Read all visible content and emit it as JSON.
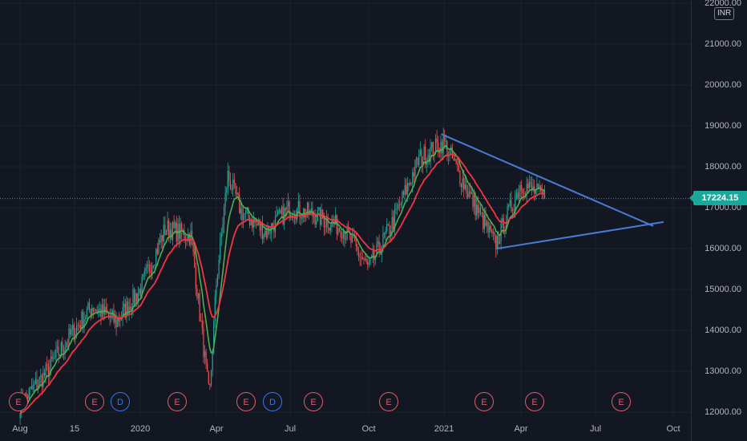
{
  "price_axis": {
    "currency": "INR",
    "top_label": "22000.00",
    "ticks": [
      "21000.00",
      "20000.00",
      "19000.00",
      "18000.00",
      "17000.00",
      "16000.00",
      "15000.00",
      "14000.00",
      "13000.00",
      "12000.00"
    ]
  },
  "last_price": {
    "label": "17224.15",
    "value": 17224.15,
    "color": "#1aa89a"
  },
  "time_axis": {
    "labels": [
      "Aug",
      "15",
      "2020",
      "Apr",
      "Jul",
      "Oct",
      "2021",
      "Apr",
      "Jul",
      "Oct"
    ]
  },
  "events": {
    "labels": [
      "E",
      "E",
      "D",
      "E",
      "E",
      "D",
      "E",
      "E",
      "E",
      "E",
      "E"
    ]
  },
  "chart_data": {
    "type": "candlestick",
    "ylim": [
      12000,
      22000
    ],
    "grid": true,
    "x_start": "2019-08",
    "x_end": "2021-10",
    "price_series_approx": [
      [
        "2019-08",
        12200
      ],
      [
        "2019-09",
        12900
      ],
      [
        "2019-10",
        13800
      ],
      [
        "2019-11",
        14600
      ],
      [
        "2019-12",
        14200
      ],
      [
        "2020-01",
        15000
      ],
      [
        "2020-02",
        16500
      ],
      [
        "2020-03",
        16300
      ],
      [
        "2020-03-23",
        12300
      ],
      [
        "2020-04",
        15200
      ],
      [
        "2020-04-15",
        17800
      ],
      [
        "2020-05",
        16900
      ],
      [
        "2020-06",
        16400
      ],
      [
        "2020-07",
        17000
      ],
      [
        "2020-08",
        16800
      ],
      [
        "2020-09",
        16500
      ],
      [
        "2020-10",
        15500
      ],
      [
        "2020-11",
        16700
      ],
      [
        "2020-12",
        18200
      ],
      [
        "2021-01",
        18600
      ],
      [
        "2021-02",
        17300
      ],
      [
        "2021-03",
        16100
      ],
      [
        "2021-04",
        17600
      ],
      [
        "2021-05",
        17224.15
      ]
    ],
    "moving_averages": [
      {
        "color": "#4caf50"
      },
      {
        "color": "#f23645"
      }
    ],
    "trendlines": [
      {
        "color": "#4a7bd4",
        "from": [
          "2020-12-28",
          18800
        ],
        "to": [
          "2021-09-08",
          16550
        ]
      },
      {
        "color": "#4a7bd4",
        "from": [
          "2021-03-03",
          16000
        ],
        "to": [
          "2021-09-20",
          16650
        ]
      }
    ]
  }
}
